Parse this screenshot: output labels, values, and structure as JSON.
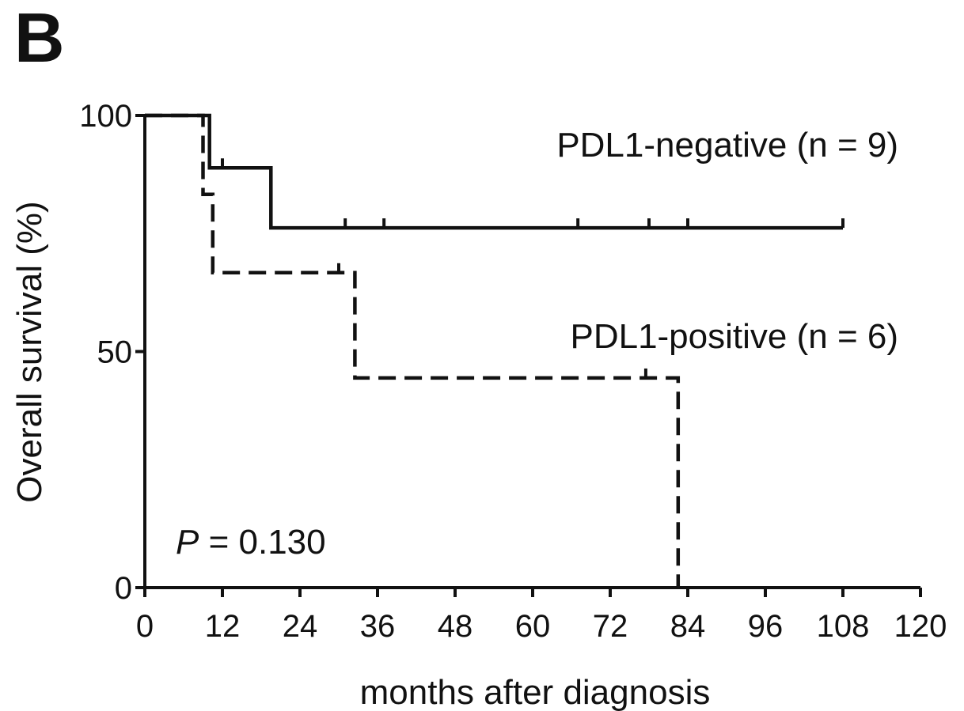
{
  "panel_label": "B",
  "chart_data": {
    "type": "line",
    "subtype": "kaplan-meier",
    "title": "",
    "xlabel": "months after diagnosis",
    "ylabel": "Overall survival (%)",
    "xlim": [
      0,
      120
    ],
    "ylim": [
      0,
      100
    ],
    "xticks": [
      0,
      12,
      24,
      36,
      48,
      60,
      72,
      84,
      96,
      108,
      120
    ],
    "yticks": [
      0,
      50,
      100
    ],
    "grid": false,
    "annotation": {
      "italic": "P",
      "rest": " = 0.130"
    },
    "series": [
      {
        "name": "PDL1-negative (n = 9)",
        "style": "solid",
        "color": "#111111",
        "steps": [
          [
            0,
            100
          ],
          [
            10,
            100
          ],
          [
            10,
            88.9
          ],
          [
            19.5,
            88.9
          ],
          [
            19.5,
            76.2
          ],
          [
            108,
            76.2
          ]
        ],
        "censored": [
          [
            12,
            88.9
          ],
          [
            31,
            76.2
          ],
          [
            37,
            76.2
          ],
          [
            67,
            76.2
          ],
          [
            78,
            76.2
          ],
          [
            84,
            76.2
          ],
          [
            108,
            76.2
          ]
        ]
      },
      {
        "name": "PDL1-positive (n = 6)",
        "style": "dashed",
        "color": "#111111",
        "steps": [
          [
            0,
            100
          ],
          [
            9,
            100
          ],
          [
            9,
            83.3
          ],
          [
            10.5,
            83.3
          ],
          [
            10.5,
            66.7
          ],
          [
            32.5,
            66.7
          ],
          [
            32.5,
            44.4
          ],
          [
            82.5,
            44.4
          ],
          [
            82.5,
            0
          ]
        ],
        "censored": [
          [
            30,
            66.7
          ],
          [
            77.5,
            44.4
          ]
        ]
      }
    ]
  }
}
